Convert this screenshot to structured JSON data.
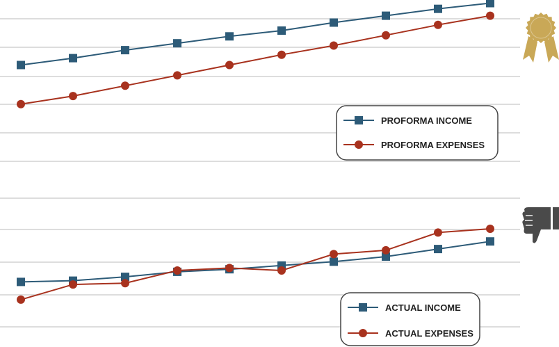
{
  "colors": {
    "income": "#2d5b78",
    "expenses": "#a8321e",
    "grid": "#d2d2d2",
    "legend_border": "#444444",
    "award": "#c9a857",
    "thumb": "#4a4a4a"
  },
  "icons": {
    "top_panel": "award-ribbon-icon",
    "bottom_panel": "thumbs-down-icon"
  },
  "chart_data": [
    {
      "type": "line",
      "x": [
        1,
        2,
        3,
        4,
        5,
        6,
        7,
        8,
        9,
        10
      ],
      "ylim": [
        0,
        10
      ],
      "grid": true,
      "legend_position": "center-right",
      "series": [
        {
          "name": "PROFORMA INCOME",
          "color_key": "income",
          "marker": "square",
          "values": [
            5.3,
            5.9,
            6.6,
            7.2,
            7.8,
            8.3,
            9.0,
            9.6,
            10.2,
            10.7
          ]
        },
        {
          "name": "PROFORMA EXPENSES",
          "color_key": "expenses",
          "marker": "circle",
          "values": [
            1.9,
            2.6,
            3.5,
            4.4,
            5.3,
            6.2,
            7.0,
            7.9,
            8.8,
            9.6
          ]
        }
      ]
    },
    {
      "type": "line",
      "x": [
        1,
        2,
        3,
        4,
        5,
        6,
        7,
        8,
        9,
        10
      ],
      "ylim": [
        0,
        10
      ],
      "grid": true,
      "legend_position": "bottom-right",
      "series": [
        {
          "name": "ACTUAL INCOME",
          "color_key": "income",
          "marker": "square",
          "values": [
            1.9,
            2.0,
            2.3,
            2.7,
            2.9,
            3.2,
            3.5,
            3.9,
            4.5,
            5.1
          ]
        },
        {
          "name": "ACTUAL EXPENSES",
          "color_key": "expenses",
          "marker": "circle",
          "values": [
            0.5,
            1.7,
            1.8,
            2.8,
            3.0,
            2.8,
            4.1,
            4.4,
            5.8,
            6.1
          ]
        }
      ]
    }
  ]
}
